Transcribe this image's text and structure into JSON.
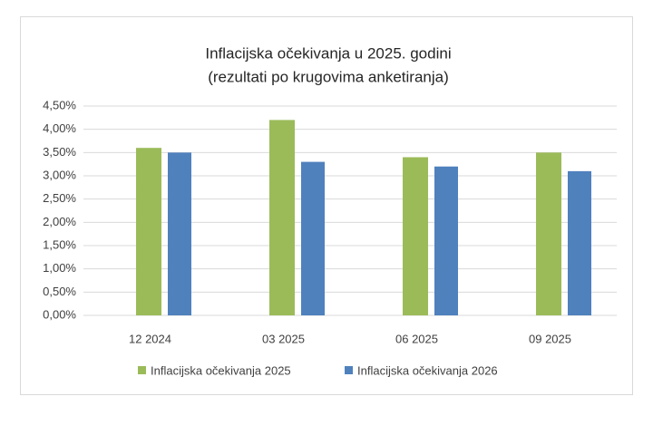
{
  "chart_data": {
    "type": "bar",
    "title": "Inflacijska očekivanja u 2025. godini",
    "subtitle": "(rezultati po krugovima anketiranja)",
    "categories": [
      "12 2024",
      "03 2025",
      "06 2025",
      "09 2025"
    ],
    "series": [
      {
        "name": "Inflacijska očekivanja 2025",
        "color": "#9bbb59",
        "values": [
          3.6,
          4.2,
          3.4,
          3.5
        ]
      },
      {
        "name": "Inflacijska očekivanja 2026",
        "color": "#4f81bd",
        "values": [
          3.5,
          3.3,
          3.2,
          3.1
        ]
      }
    ],
    "ylim": [
      0,
      4.5
    ],
    "yticks": [
      {
        "value": 0,
        "label": "0,00%"
      },
      {
        "value": 0.5,
        "label": "0,50%"
      },
      {
        "value": 1,
        "label": "1,00%"
      },
      {
        "value": 1.5,
        "label": "1,50%"
      },
      {
        "value": 2,
        "label": "2,00%"
      },
      {
        "value": 2.5,
        "label": "2,50%"
      },
      {
        "value": 3,
        "label": "3,00%"
      },
      {
        "value": 3.5,
        "label": "3,50%"
      },
      {
        "value": 4,
        "label": "4,00%"
      },
      {
        "value": 4.5,
        "label": "4,50%"
      }
    ],
    "grid": true,
    "legend": "bottom"
  }
}
